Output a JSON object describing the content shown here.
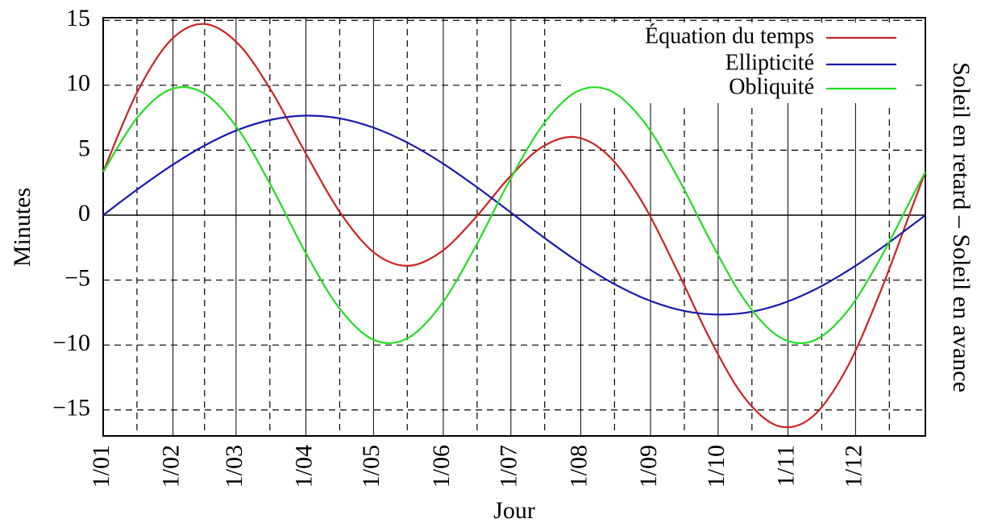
{
  "chart_data": {
    "type": "line",
    "x_label": "Jour",
    "y_label": "Minutes",
    "y2_label": "Soleil en retard – Soleil  en avance",
    "x": [
      0,
      15,
      30,
      45,
      60,
      75,
      90,
      105,
      120,
      135,
      150,
      165,
      180,
      195,
      210,
      225,
      240,
      255,
      270,
      285,
      300,
      315,
      330,
      345,
      360,
      365
    ],
    "series": [
      {
        "name": "Équation du temps",
        "color": "#cc2222",
        "values": [
          3.33,
          9.44,
          13.47,
          14.72,
          13.18,
          9.47,
          4.73,
          0.25,
          -2.85,
          -3.9,
          -2.83,
          -0.25,
          2.85,
          5.26,
          6.0,
          4.47,
          0.8,
          -4.33,
          -9.75,
          -14.12,
          -16.25,
          -15.5,
          -11.82,
          -5.92,
          1.03,
          3.33
        ]
      },
      {
        "name": "Ellipticité",
        "color": "#1a1aaa",
        "values": [
          0,
          1.96,
          3.78,
          5.36,
          6.58,
          7.36,
          7.66,
          7.45,
          6.74,
          5.59,
          4.07,
          2.27,
          0.33,
          -1.64,
          -3.49,
          -5.12,
          -6.4,
          -7.26,
          -7.64,
          -7.52,
          -6.89,
          -5.81,
          -4.34,
          -2.59,
          -0.66,
          0
        ]
      },
      {
        "name": "Obliquité",
        "color": "#22dd22",
        "values": [
          3.33,
          7.48,
          9.69,
          9.36,
          6.6,
          2.11,
          -2.93,
          -7.2,
          -9.59,
          -9.49,
          -6.9,
          -2.52,
          2.52,
          6.9,
          9.49,
          9.59,
          7.2,
          2.93,
          -2.11,
          -6.6,
          -9.36,
          -9.69,
          -7.48,
          -3.33,
          1.69,
          3.33
        ]
      }
    ],
    "xlim": [
      0,
      365
    ],
    "xticks": [
      {
        "value": 0,
        "label": "1/01"
      },
      {
        "value": 31,
        "label": "1/02"
      },
      {
        "value": 59,
        "label": "1/03"
      },
      {
        "value": 90,
        "label": "1/04"
      },
      {
        "value": 120,
        "label": "1/05"
      },
      {
        "value": 151,
        "label": "1/06"
      },
      {
        "value": 181,
        "label": "1/07"
      },
      {
        "value": 212,
        "label": "1/08"
      },
      {
        "value": 243,
        "label": "1/09"
      },
      {
        "value": 273,
        "label": "1/10"
      },
      {
        "value": 304,
        "label": "1/11"
      },
      {
        "value": 334,
        "label": "1/12"
      }
    ],
    "minor_xticks": [
      15,
      45,
      74,
      105,
      135,
      166,
      196,
      227,
      258,
      288,
      319,
      349
    ],
    "ylim": [
      -17,
      15.2
    ],
    "yticks": [
      15,
      10,
      5,
      0,
      {
        "value": -5,
        "label": "−5"
      },
      {
        "value": -10,
        "label": "−10"
      },
      {
        "value": -15,
        "label": "−15"
      }
    ],
    "grid": true,
    "legend": "upper right"
  }
}
